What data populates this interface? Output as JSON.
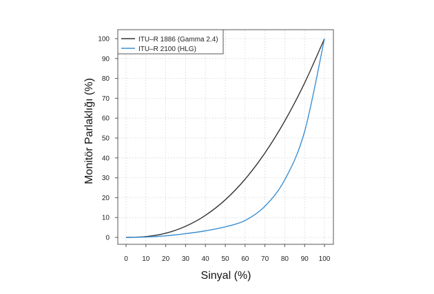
{
  "chart_data": {
    "type": "line",
    "xlabel": "Sinyal (%)",
    "ylabel": "Monitör Parlaklığı (%)",
    "xlim": [
      0,
      100
    ],
    "ylim": [
      0,
      100
    ],
    "x_ticks": [
      "0",
      "10",
      "20",
      "30",
      "40",
      "50",
      "60",
      "70",
      "80",
      "90",
      "100"
    ],
    "y_ticks": [
      "0",
      "10",
      "20",
      "30",
      "40",
      "50",
      "60",
      "70",
      "80",
      "90",
      "100"
    ],
    "grid": true,
    "legend_position": "top-left",
    "x": [
      0,
      10,
      20,
      30,
      40,
      50,
      60,
      70,
      80,
      90,
      100
    ],
    "series": [
      {
        "name": "ITU–R 1886 (Gamma 2.4)",
        "color": "#333333",
        "values": [
          0,
          0.4,
          2.1,
          5.6,
          11.1,
          18.9,
          29.3,
          42.5,
          58.6,
          77.7,
          100
        ]
      },
      {
        "name": "ITU–R 2100 (HLG)",
        "color": "#3a8fd3",
        "values": [
          0,
          0.2,
          0.8,
          1.9,
          3.3,
          5.3,
          8.5,
          15.7,
          29.0,
          53.3,
          100
        ]
      }
    ]
  }
}
